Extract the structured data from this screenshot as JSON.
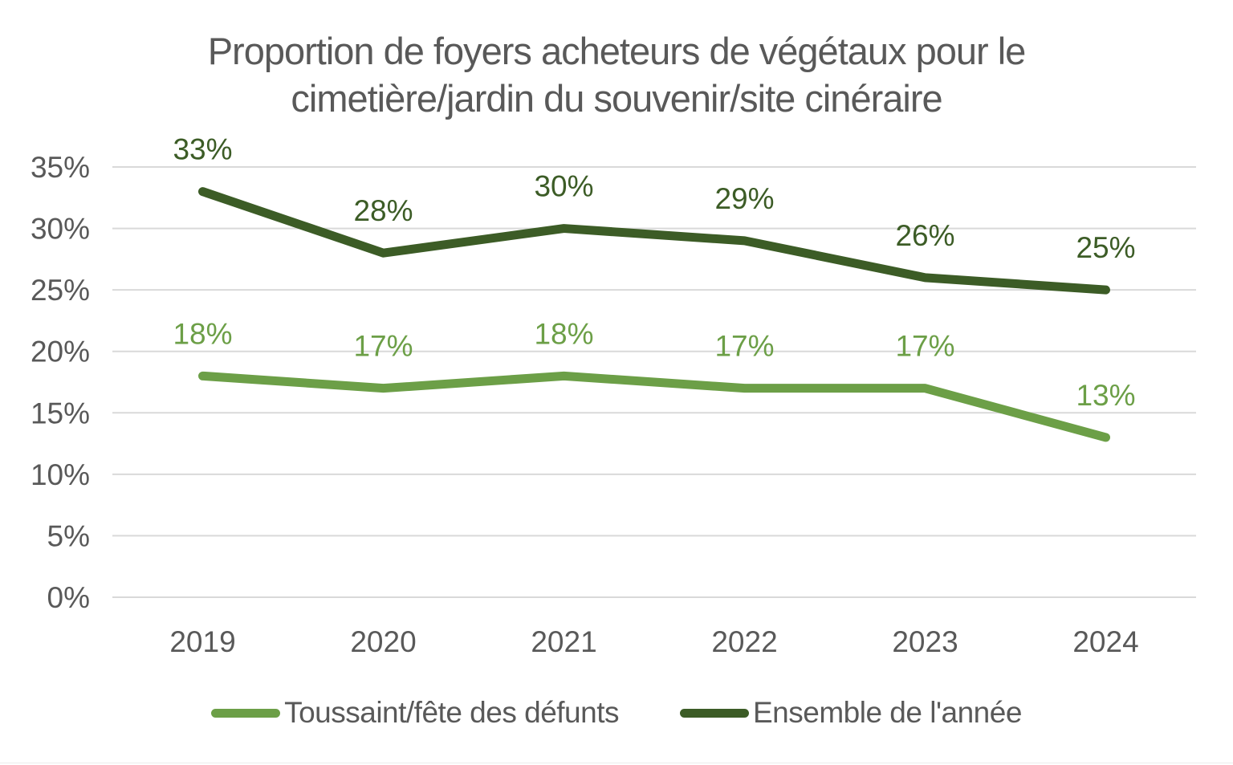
{
  "title_lines": [
    "Proportion de foyers acheteurs de végétaux pour le",
    "cimetière/jardin du souvenir/site cinéraire"
  ],
  "chart_data": {
    "type": "line",
    "title": "Proportion de foyers acheteurs de végétaux pour le cimetière/jardin du souvenir/site cinéraire",
    "categories": [
      "2019",
      "2020",
      "2021",
      "2022",
      "2023",
      "2024"
    ],
    "series": [
      {
        "name": "Toussaint/fête des défunts",
        "values": [
          18,
          17,
          18,
          17,
          17,
          13
        ],
        "labels": [
          "18%",
          "17%",
          "18%",
          "17%",
          "17%",
          "13%"
        ],
        "color": "#6C9F47"
      },
      {
        "name": "Ensemble de l'année",
        "values": [
          33,
          28,
          30,
          29,
          26,
          25
        ],
        "labels": [
          "33%",
          "28%",
          "30%",
          "29%",
          "26%",
          "25%"
        ],
        "color": "#3C5C26"
      }
    ],
    "ylim": [
      0,
      35
    ],
    "y_step": 5,
    "y_tick_labels": [
      "0%",
      "5%",
      "10%",
      "15%",
      "20%",
      "25%",
      "30%",
      "35%"
    ],
    "grid": true,
    "legend_position": "bottom",
    "colors": {
      "text": "#595959",
      "grid": "#D9D9D9",
      "background": "#FFFFFF"
    }
  }
}
